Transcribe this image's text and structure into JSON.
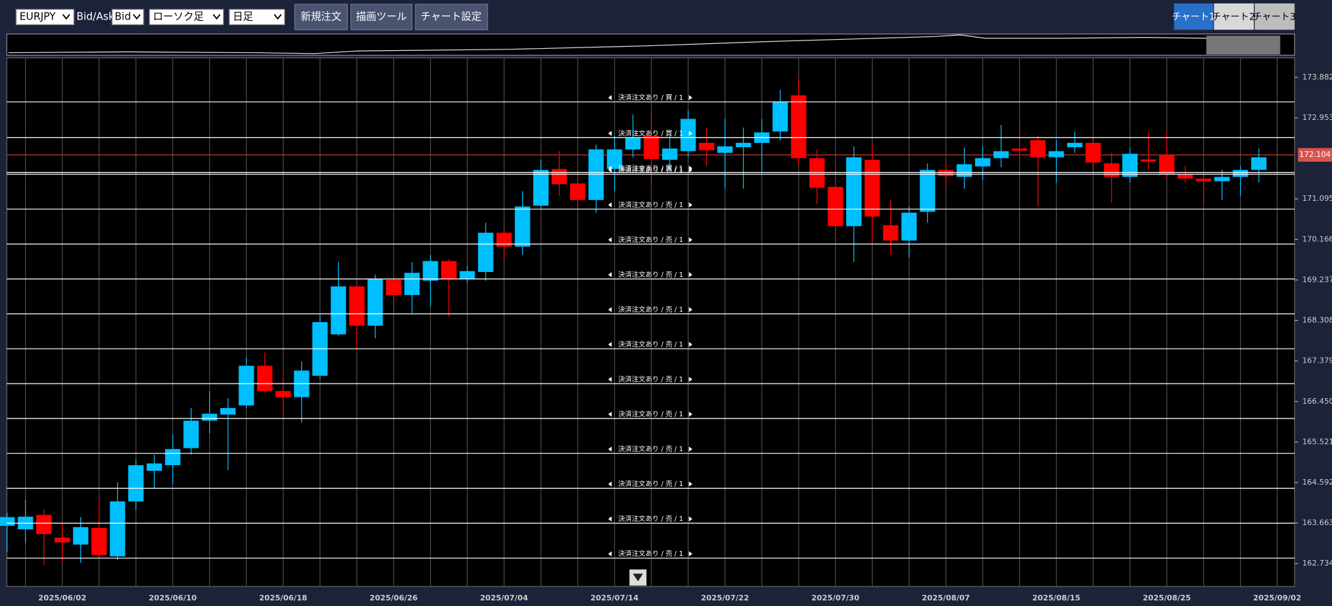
{
  "toolbar": {
    "symbol": "EURJPY",
    "bid_ask_label": "Bid/Ask",
    "price_type": "Bid",
    "chart_style": "ローソク足",
    "timeframe": "日足",
    "buttons": [
      "新規注文",
      "描画ツール",
      "チャート設定"
    ],
    "tabs": [
      "チャート1",
      "チャート2",
      "チャート3"
    ]
  },
  "chart_data": {
    "type": "candlestick",
    "categories": [
      null,
      null,
      null,
      "2025/06/02",
      null,
      null,
      null,
      null,
      null,
      "2025/06/10",
      null,
      null,
      null,
      null,
      null,
      "2025/06/18",
      null,
      null,
      null,
      null,
      null,
      "2025/06/26",
      null,
      null,
      null,
      null,
      null,
      "2025/07/04",
      null,
      null,
      null,
      null,
      null,
      "2025/07/14",
      null,
      null,
      null,
      null,
      null,
      "2025/07/22",
      null,
      null,
      null,
      null,
      null,
      "2025/07/30",
      null,
      null,
      null,
      null,
      null,
      "2025/08/07",
      null,
      null,
      null,
      null,
      null,
      "2025/08/15",
      null,
      null,
      null,
      null,
      null,
      "2025/08/25",
      null,
      null,
      null,
      null,
      null,
      "2025/09/02"
    ],
    "open": [
      163.6,
      163.52,
      163.85,
      163.33,
      163.17,
      163.55,
      162.9,
      164.16,
      164.86,
      164.99,
      165.38,
      166.01,
      166.15,
      166.36,
      167.27,
      166.69,
      166.55,
      167.04,
      167.99,
      169.09,
      168.19,
      169.24,
      168.89,
      169.22,
      169.67,
      169.26,
      169.42,
      170.32,
      170.0,
      170.94,
      171.78,
      171.45,
      171.07,
      171.78,
      172.23,
      172.54,
      171.99,
      172.19,
      172.38,
      172.15,
      172.28,
      172.38,
      172.64,
      173.47,
      172.03,
      171.37,
      170.47,
      171.99,
      170.49,
      170.14,
      170.8,
      171.76,
      171.6,
      171.84,
      172.03,
      172.25,
      172.44,
      172.05,
      172.28,
      172.38,
      171.91,
      171.6,
      172.0,
      172.1,
      171.66,
      171.56,
      171.5,
      171.6,
      171.76,
      null
    ],
    "high": [
      163.9,
      164.2,
      163.98,
      163.67,
      163.8,
      164.2,
      164.6,
      165.13,
      165.23,
      165.7,
      166.3,
      166.69,
      166.53,
      167.47,
      167.57,
      166.98,
      167.37,
      168.44,
      169.65,
      169.13,
      169.36,
      169.32,
      169.65,
      169.81,
      169.71,
      169.55,
      170.55,
      170.4,
      171.27,
      171.99,
      172.19,
      171.76,
      172.34,
      172.54,
      173.03,
      173.22,
      172.54,
      173.12,
      172.73,
      172.93,
      172.73,
      172.93,
      173.59,
      173.86,
      172.23,
      171.56,
      172.3,
      172.34,
      171.08,
      170.92,
      171.91,
      171.95,
      172.27,
      172.3,
      172.79,
      172.9,
      172.54,
      172.44,
      172.64,
      172.54,
      172.15,
      172.25,
      172.64,
      172.64,
      171.85,
      171.66,
      171.76,
      171.85,
      172.25,
      null
    ],
    "low": [
      163.0,
      163.2,
      162.7,
      162.75,
      162.75,
      162.85,
      162.81,
      163.96,
      164.45,
      164.55,
      165.23,
      165.72,
      164.88,
      166.3,
      166.65,
      166.1,
      165.97,
      166.98,
      167.96,
      167.66,
      167.9,
      168.54,
      168.48,
      168.64,
      168.4,
      169.18,
      169.22,
      169.71,
      169.81,
      170.88,
      171.17,
      170.88,
      170.78,
      171.27,
      172.05,
      171.45,
      171.76,
      172.05,
      171.85,
      171.33,
      171.33,
      171.72,
      172.44,
      171.85,
      170.98,
      170.1,
      169.65,
      170.1,
      169.81,
      169.75,
      170.55,
      171.37,
      171.33,
      171.52,
      171.82,
      171.9,
      170.92,
      171.47,
      172.15,
      171.76,
      171.0,
      171.47,
      171.76,
      171.56,
      171.47,
      171.0,
      171.07,
      171.17,
      171.47,
      null
    ],
    "close": [
      163.8,
      163.81,
      163.41,
      163.22,
      163.57,
      162.93,
      164.16,
      164.99,
      165.03,
      165.36,
      166.01,
      166.17,
      166.3,
      167.27,
      166.69,
      166.55,
      167.16,
      168.27,
      169.09,
      168.19,
      169.26,
      168.89,
      169.4,
      169.67,
      169.26,
      169.44,
      170.32,
      170.0,
      170.92,
      171.76,
      171.43,
      171.07,
      172.23,
      172.23,
      172.5,
      172.01,
      172.25,
      172.93,
      172.21,
      172.3,
      172.38,
      172.62,
      173.32,
      172.03,
      171.35,
      170.47,
      172.05,
      170.69,
      170.14,
      170.78,
      171.76,
      171.62,
      171.89,
      172.03,
      172.19,
      172.2,
      172.05,
      172.19,
      172.38,
      171.93,
      171.6,
      172.13,
      171.95,
      171.66,
      171.56,
      171.5,
      171.6,
      171.76,
      172.05,
      null
    ],
    "up_color": "#00bfff",
    "down_color": "#ff0000",
    "ylim": [
      162.21,
      174.33
    ],
    "yticks": [
      {
        "value": 173.882,
        "label": "173.882"
      },
      {
        "value": 172.953,
        "label": "172.953"
      },
      {
        "value": 171.095,
        "label": "171.095"
      },
      {
        "value": 170.166,
        "label": "170.166"
      },
      {
        "value": 169.237,
        "label": "169.237"
      },
      {
        "value": 168.308,
        "label": "168.308"
      },
      {
        "value": 167.379,
        "label": "167.379"
      },
      {
        "value": 166.45,
        "label": "166.450"
      },
      {
        "value": 165.521,
        "label": "165.521"
      },
      {
        "value": 164.592,
        "label": "164.592"
      },
      {
        "value": 163.663,
        "label": "163.663"
      },
      {
        "value": 162.734,
        "label": "162.734"
      }
    ],
    "current_price": 172.104,
    "orders": [
      {
        "label": "決済注文あり / 買 / 1",
        "price": 173.32
      },
      {
        "label": "決済注文あり / 買 / 1",
        "price": 172.5
      },
      {
        "label": "決済注文あり / 買 / 1",
        "price": 171.7
      },
      {
        "label": "決済注文あり / 売 / 1",
        "price": 171.66
      },
      {
        "label": "決済注文あり / 売 / 1",
        "price": 170.86
      },
      {
        "label": "決済注文あり / 売 / 1",
        "price": 170.06
      },
      {
        "label": "決済注文あり / 売 / 1",
        "price": 169.26
      },
      {
        "label": "決済注文あり / 売 / 1",
        "price": 168.46
      },
      {
        "label": "決済注文あり / 売 / 1",
        "price": 167.66
      },
      {
        "label": "決済注文あり / 売 / 1",
        "price": 166.86
      },
      {
        "label": "決済注文あり / 売 / 1",
        "price": 166.06
      },
      {
        "label": "決済注文あり / 売 / 1",
        "price": 165.26
      },
      {
        "label": "決済注文あり / 売 / 1",
        "price": 164.46
      },
      {
        "label": "決済注文あり / 売 / 1",
        "price": 163.66
      },
      {
        "label": "決済注文あり / 売 / 1",
        "price": 162.86
      }
    ]
  }
}
